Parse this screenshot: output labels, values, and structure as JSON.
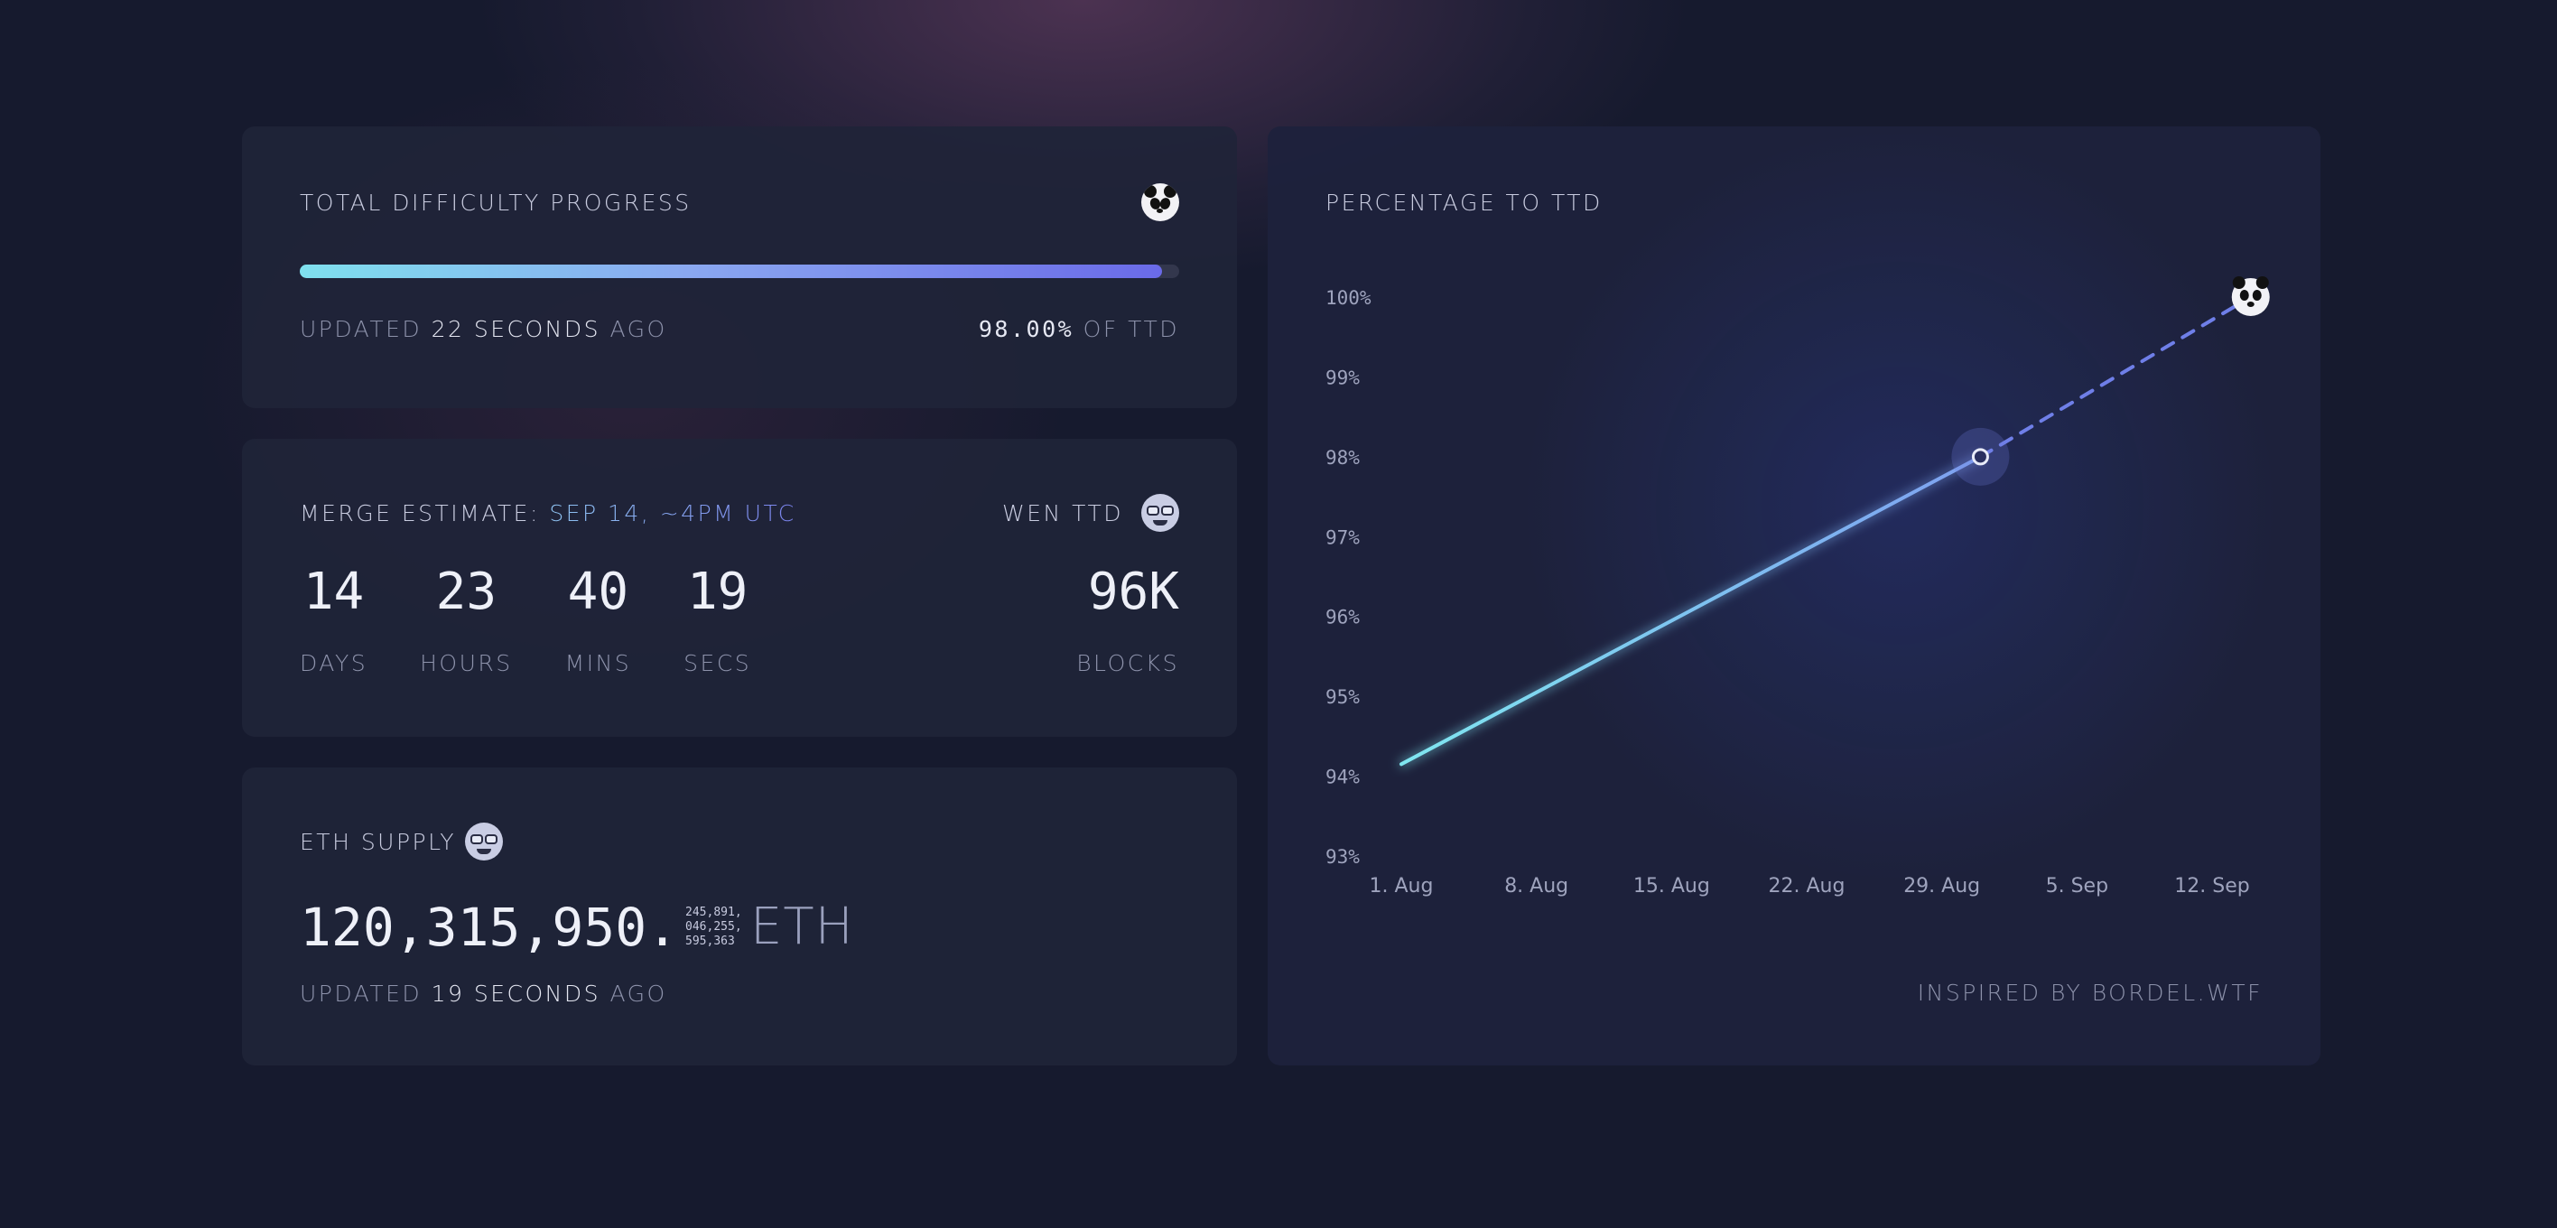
{
  "progress": {
    "title": "TOTAL DIFFICULTY PROGRESS",
    "fraction": 0.98,
    "updated_prefix": "UPDATED",
    "updated_value": "22 SECONDS",
    "updated_suffix": "AGO",
    "percent": "98.00%",
    "percent_suffix": "OF TTD",
    "icon": "panda-icon"
  },
  "merge": {
    "title_prefix": "MERGE ESTIMATE:",
    "estimate": "SEP 14, ~4PM UTC",
    "wen_label": "WEN TTD",
    "icon": "nerd-face-icon",
    "countdown": [
      {
        "value": "14",
        "label": "DAYS"
      },
      {
        "value": "23",
        "label": "HOURS"
      },
      {
        "value": "40",
        "label": "MINS"
      },
      {
        "value": "19",
        "label": "SECS"
      }
    ],
    "blocks_value": "96K",
    "blocks_label": "BLOCKS"
  },
  "supply": {
    "title": "ETH SUPPLY",
    "icon": "nerd-face-icon",
    "integer": "120,315,950.",
    "fraction_lines": [
      "245,891,",
      "046,255,",
      "595,363"
    ],
    "unit": "ETH",
    "updated_prefix": "UPDATED",
    "updated_value": "19 SECONDS",
    "updated_suffix": "AGO"
  },
  "chart": {
    "title": "PERCENTAGE TO TTD",
    "credit": "INSPIRED BY BORDEL.WTF"
  },
  "chart_data": {
    "type": "line",
    "title": "PERCENTAGE TO TTD",
    "xlabel": "",
    "ylabel": "",
    "x_ticks": [
      "1. Aug",
      "8. Aug",
      "15. Aug",
      "22. Aug",
      "29. Aug",
      "5. Sep",
      "12. Sep"
    ],
    "y_ticks": [
      "100%",
      "99%",
      "98%",
      "97%",
      "96%",
      "95%",
      "94%",
      "93%"
    ],
    "ylim": [
      93,
      100
    ],
    "series": [
      {
        "style": "solid",
        "points": [
          {
            "x": "2022-08-01",
            "y": 94.15
          },
          {
            "x": "2022-08-31",
            "y": 98.0
          }
        ]
      },
      {
        "style": "dashed",
        "points": [
          {
            "x": "2022-08-31",
            "y": 98.0
          },
          {
            "x": "2022-09-14",
            "y": 100.0
          }
        ]
      }
    ],
    "current_point": {
      "x": "2022-08-31",
      "y": 98.0
    },
    "target_marker": {
      "x": "2022-09-14",
      "y": 100.0,
      "icon": "panda-icon"
    },
    "grid": false,
    "colors": {
      "solid_start": "#7fe6f0",
      "solid_end": "#7ea0f0",
      "dashed": "#6f7fe8"
    }
  }
}
